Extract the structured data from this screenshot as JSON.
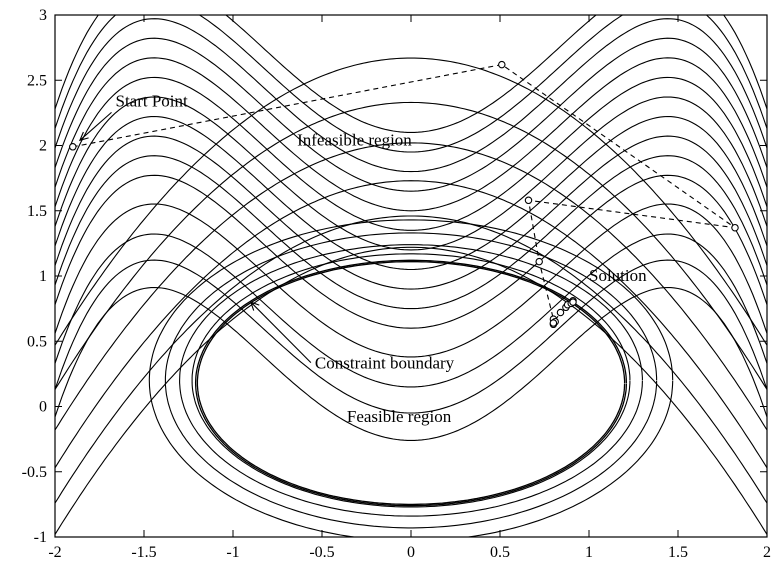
{
  "chart_data": {
    "type": "line",
    "title": "",
    "xlabel": "",
    "ylabel": "",
    "xlim": [
      -2,
      2
    ],
    "ylim": [
      -1,
      3
    ],
    "grid": false,
    "xticks": [
      "-2",
      "-1.5",
      "-1",
      "-0.5",
      "0",
      "0.5",
      "1",
      "1.5",
      "2"
    ],
    "yticks": [
      "-1",
      "-0.5",
      "0",
      "0.5",
      "1",
      "1.5",
      "2",
      "2.5",
      "3"
    ],
    "xtick_values": [
      -2,
      -1.5,
      -1,
      -0.5,
      0,
      0.5,
      1,
      1.5,
      2
    ],
    "ytick_values": [
      -1,
      -0.5,
      0,
      0.5,
      1,
      1.5,
      2,
      2.5,
      3
    ],
    "contours": {
      "inner_loop_levels": [
        -0.26,
        -0.05,
        0.15,
        0.38,
        0.6,
        0.75,
        0.9,
        1.05,
        1.2,
        1.35,
        1.5,
        1.65,
        1.8,
        1.95,
        2.1
      ],
      "upper_arc_levels": [
        1.22,
        1.46,
        1.73,
        2.02,
        2.33,
        2.67
      ],
      "outer_ellipses": [
        [
          1.23,
          0.97
        ],
        [
          1.3,
          1.04
        ],
        [
          1.38,
          1.13
        ],
        [
          1.47,
          1.23
        ]
      ],
      "constraint_ellipses": [
        [
          1.2,
          0.93
        ],
        [
          1.21,
          0.94
        ]
      ]
    },
    "series": [
      {
        "x": [
          -1.9,
          0.51,
          1.82,
          0.66,
          0.72,
          0.8,
          0.81,
          0.8,
          0.8,
          0.84,
          0.87,
          0.88,
          0.9,
          0.91,
          0.91
        ],
        "y": [
          1.99,
          2.62,
          1.37,
          1.58,
          1.11,
          0.67,
          0.65,
          0.63,
          0.64,
          0.72,
          0.76,
          0.78,
          0.79,
          0.81,
          0.8
        ]
      }
    ],
    "annotations": [
      {
        "text": "Start Point",
        "x": -1.66,
        "y": 2.3,
        "arrow_to": [
          -1.86,
          2.04
        ]
      },
      {
        "text": "Infeasible region",
        "x": -0.64,
        "y": 2.0
      },
      {
        "text": "Solution",
        "x": 1.0,
        "y": 0.96
      },
      {
        "text": "Constraint boundary",
        "x": -0.54,
        "y": 0.29,
        "arrow_to": [
          -0.9,
          0.8
        ]
      },
      {
        "text": "Feasible region",
        "x": -0.36,
        "y": -0.12
      }
    ]
  }
}
